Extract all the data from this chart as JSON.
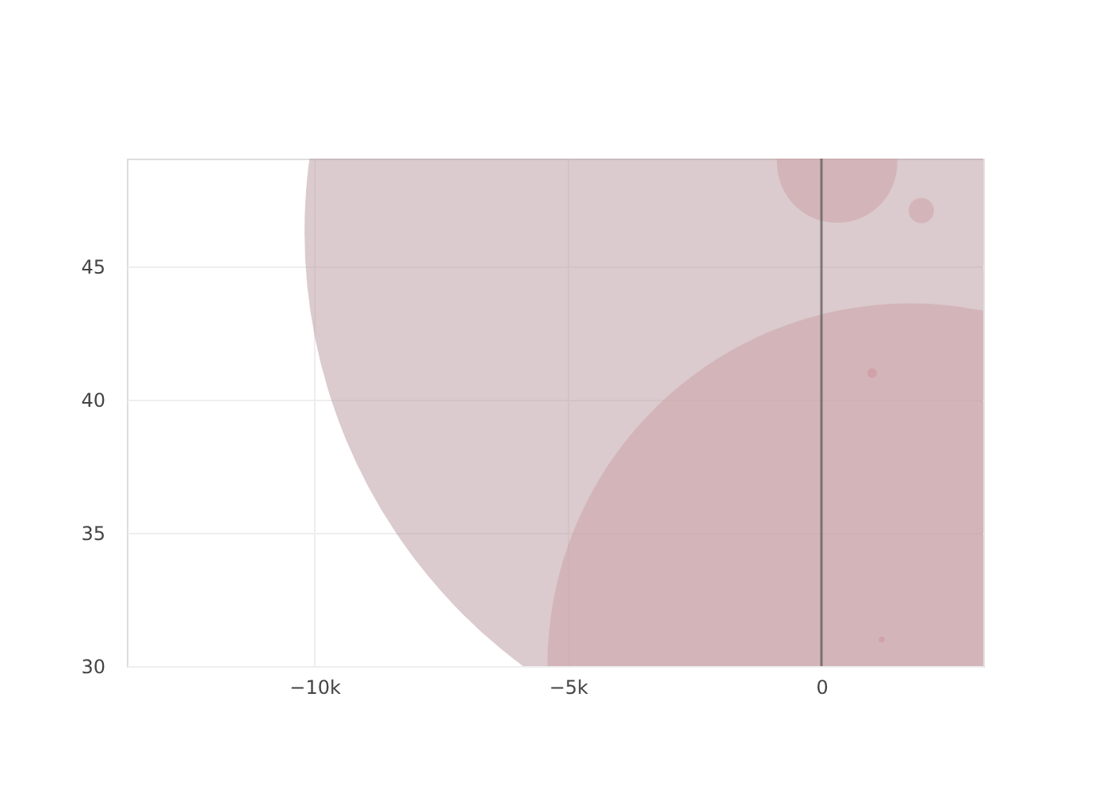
{
  "chart_data": {
    "type": "bubble",
    "x": [
      470,
      1750,
      310,
      1970,
      1000,
      1190
    ],
    "values": [
      46.3,
      30.0,
      48.9,
      47.1,
      41.0,
      31.0
    ],
    "sizes": [
      1,
      0.45,
      0.0124,
      0.00055,
      8e-05,
      3e-05
    ],
    "colors": [
      "#b7979d",
      "#cb9fa4",
      "#cb9fa4",
      "#cb9fa4",
      "#d08f9a",
      "#d08f9a"
    ],
    "xlim": [
      -13700,
      3190
    ],
    "xticks": [
      {
        "value": -10000,
        "label": "−10k"
      },
      {
        "value": -5000,
        "label": "−5k"
      },
      0
    ],
    "ylim": [
      30,
      49.05
    ],
    "yticks": [
      30,
      35,
      40,
      45
    ],
    "ref_lines": [
      {
        "axis": "x",
        "value": 0,
        "color": "#444444"
      }
    ],
    "grid": true
  }
}
